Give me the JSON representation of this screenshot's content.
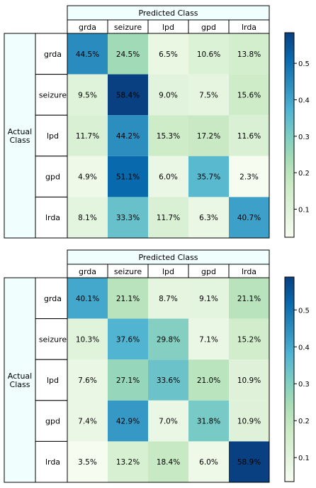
{
  "chart_data": [
    {
      "type": "heatmap",
      "header_label": "Predicted Class",
      "row_header_label": "Actual\nClass",
      "columns": [
        "grda",
        "seizure",
        "lpd",
        "gpd",
        "lrda"
      ],
      "rows": [
        "grda",
        "seizure",
        "lpd",
        "gpd",
        "lrda"
      ],
      "values": [
        [
          44.5,
          24.5,
          6.5,
          10.6,
          13.8
        ],
        [
          9.5,
          58.4,
          9.0,
          7.5,
          15.6
        ],
        [
          11.7,
          44.2,
          15.3,
          17.2,
          11.6
        ],
        [
          4.9,
          51.1,
          6.0,
          35.7,
          2.3
        ],
        [
          8.1,
          33.3,
          11.7,
          6.3,
          40.7
        ]
      ],
      "value_suffix": "%",
      "colorbar": {
        "ticks": [
          "0.1",
          "0.2",
          "0.3",
          "0.4",
          "0.5"
        ],
        "range": [
          0.023,
          0.584
        ],
        "colormap": "GnBu"
      }
    },
    {
      "type": "heatmap",
      "header_label": "Predicted Class",
      "row_header_label": "Actual\nClass",
      "columns": [
        "grda",
        "seizure",
        "lpd",
        "gpd",
        "lrda"
      ],
      "rows": [
        "grda",
        "seizure",
        "lpd",
        "gpd",
        "lrda"
      ],
      "values": [
        [
          40.1,
          21.1,
          8.7,
          9.1,
          21.1
        ],
        [
          10.3,
          37.6,
          29.8,
          7.1,
          15.2
        ],
        [
          7.6,
          27.1,
          33.6,
          21.0,
          10.9
        ],
        [
          7.4,
          42.9,
          7.0,
          31.8,
          10.9
        ],
        [
          3.5,
          13.2,
          18.4,
          6.0,
          58.9
        ]
      ],
      "value_suffix": "%",
      "colorbar": {
        "ticks": [
          "0.1",
          "0.2",
          "0.3",
          "0.4",
          "0.5"
        ],
        "range": [
          0.035,
          0.589
        ],
        "colormap": "GnBu"
      }
    }
  ]
}
